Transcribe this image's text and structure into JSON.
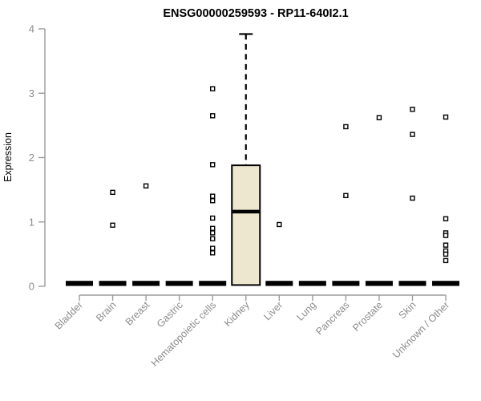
{
  "chart_data": {
    "type": "boxplot",
    "title": "ENSG00000259593 - RP11-640I2.1",
    "ylabel": "Expression",
    "xlabel": "",
    "ylim": [
      0,
      4
    ],
    "yticks": [
      0,
      1,
      2,
      3,
      4
    ],
    "grid": false,
    "legend": false,
    "categories": [
      "Bladder",
      "Brain",
      "Breast",
      "Gastric",
      "Hematopoietic cells",
      "Kidney",
      "Liver",
      "Lung",
      "Pancreas",
      "Prostate",
      "Skin",
      "Unknown / Other"
    ],
    "boxes": [
      {
        "category": "Bladder",
        "flat": true,
        "median": 0,
        "q1": 0,
        "q3": 0,
        "whisker_low": 0,
        "whisker_high": 0,
        "outliers": []
      },
      {
        "category": "Brain",
        "flat": true,
        "median": 0,
        "q1": 0,
        "q3": 0,
        "whisker_low": 0,
        "whisker_high": 0,
        "outliers": [
          1.46,
          0.95
        ]
      },
      {
        "category": "Breast",
        "flat": true,
        "median": 0,
        "q1": 0,
        "q3": 0,
        "whisker_low": 0,
        "whisker_high": 0,
        "outliers": [
          1.56
        ]
      },
      {
        "category": "Gastric",
        "flat": true,
        "median": 0,
        "q1": 0,
        "q3": 0,
        "whisker_low": 0,
        "whisker_high": 0,
        "outliers": []
      },
      {
        "category": "Hematopoietic cells",
        "flat": true,
        "median": 0,
        "q1": 0,
        "q3": 0,
        "whisker_low": 0,
        "whisker_high": 0,
        "outliers": [
          3.07,
          2.65,
          1.89,
          1.4,
          1.33,
          1.06,
          0.9,
          0.83,
          0.74,
          0.59,
          0.52
        ]
      },
      {
        "category": "Kidney",
        "flat": false,
        "median": 1.16,
        "q1": 0.02,
        "q3": 1.88,
        "whisker_low": 0.02,
        "whisker_high": 3.92,
        "outliers": []
      },
      {
        "category": "Liver",
        "flat": true,
        "median": 0,
        "q1": 0,
        "q3": 0,
        "whisker_low": 0,
        "whisker_high": 0,
        "outliers": [
          0.96
        ]
      },
      {
        "category": "Lung",
        "flat": true,
        "median": 0,
        "q1": 0,
        "q3": 0,
        "whisker_low": 0,
        "whisker_high": 0,
        "outliers": []
      },
      {
        "category": "Pancreas",
        "flat": true,
        "median": 0,
        "q1": 0,
        "q3": 0,
        "whisker_low": 0,
        "whisker_high": 0,
        "outliers": [
          2.48,
          1.41
        ]
      },
      {
        "category": "Prostate",
        "flat": true,
        "median": 0,
        "q1": 0,
        "q3": 0,
        "whisker_low": 0,
        "whisker_high": 0,
        "outliers": [
          2.62
        ]
      },
      {
        "category": "Skin",
        "flat": true,
        "median": 0,
        "q1": 0,
        "q3": 0,
        "whisker_low": 0,
        "whisker_high": 0,
        "outliers": [
          2.75,
          2.36,
          1.37
        ]
      },
      {
        "category": "Unknown / Other",
        "flat": true,
        "median": 0,
        "q1": 0,
        "q3": 0,
        "whisker_low": 0,
        "whisker_high": 0,
        "outliers": [
          2.63,
          1.05,
          0.83,
          0.79,
          0.64,
          0.55,
          0.5,
          0.4
        ]
      }
    ],
    "colors": {
      "box_fill": "#ECE7CE",
      "box_stroke": "#000000",
      "median": "#000000",
      "flat_bar": "#000000",
      "outlier_stroke": "#000000",
      "outlier_fill": "#FFFFFF",
      "axis": "#9B9B9B",
      "tick_label": "#8C8C8C",
      "title": "#000000"
    }
  }
}
